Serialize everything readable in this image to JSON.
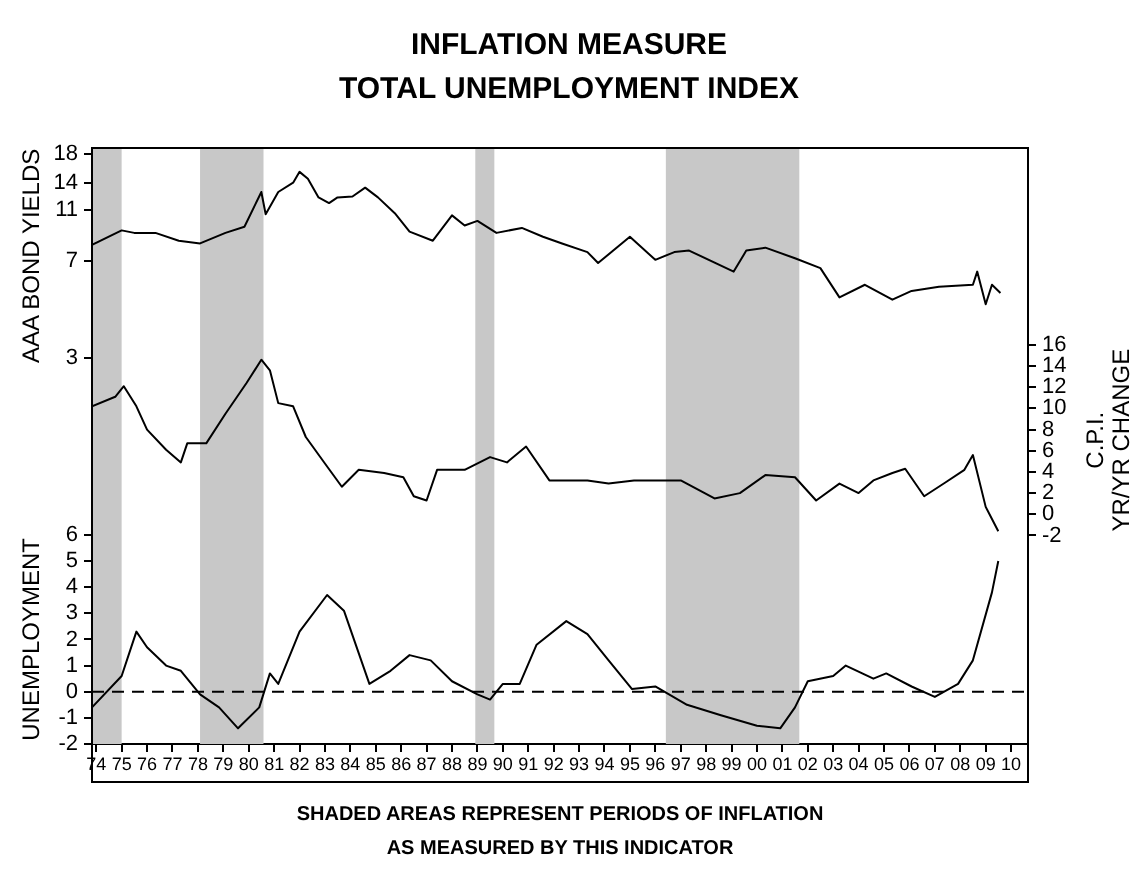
{
  "chart_data": {
    "type": "line",
    "title": "INFLATION MEASURE",
    "subtitle": "TOTAL UNEMPLOYMENT INDEX",
    "ylabel": "AAA BOND YIELDS",
    "y2label": "C.P.I.\nYR/YR CHANGE",
    "y3label": "UNEMPLOYMENT",
    "annotations": [
      "SHADED AREAS REPRESENT PERIODS OF INFLATION",
      "AS MEASURED BY THIS INDICATOR"
    ],
    "xlim": [
      "1973-11-01",
      "2010-09-01"
    ],
    "xticks": [
      {
        "value": "1974",
        "label": "74"
      },
      {
        "value": "1975",
        "label": "75"
      },
      {
        "value": "1976",
        "label": "76"
      },
      {
        "value": "1977",
        "label": "77"
      },
      {
        "value": "1978",
        "label": "78"
      },
      {
        "value": "1979",
        "label": "79"
      },
      {
        "value": "1980",
        "label": "80"
      },
      {
        "value": "1981",
        "label": "81"
      },
      {
        "value": "1982",
        "label": "82"
      },
      {
        "value": "1983",
        "label": "83"
      },
      {
        "value": "1984",
        "label": "84"
      },
      {
        "value": "1985",
        "label": "85"
      },
      {
        "value": "1986",
        "label": "86"
      },
      {
        "value": "1987",
        "label": "87"
      },
      {
        "value": "1988",
        "label": "88"
      },
      {
        "value": "1989",
        "label": "89"
      },
      {
        "value": "1990",
        "label": "90"
      },
      {
        "value": "1991",
        "label": "91"
      },
      {
        "value": "1992",
        "label": "92"
      },
      {
        "value": "1993",
        "label": "93"
      },
      {
        "value": "1994",
        "label": "94"
      },
      {
        "value": "1995",
        "label": "95"
      },
      {
        "value": "1996",
        "label": "96"
      },
      {
        "value": "1997",
        "label": "97"
      },
      {
        "value": "1998",
        "label": "98"
      },
      {
        "value": "1999",
        "label": "99"
      },
      {
        "value": "2000",
        "label": "00"
      },
      {
        "value": "2001",
        "label": "01"
      },
      {
        "value": "2002",
        "label": "02"
      },
      {
        "value": "2003",
        "label": "03"
      },
      {
        "value": "2004",
        "label": "04"
      },
      {
        "value": "2005",
        "label": "05"
      },
      {
        "value": "2006",
        "label": "06"
      },
      {
        "value": "2007",
        "label": "07"
      },
      {
        "value": "2008",
        "label": "08"
      },
      {
        "value": "2009",
        "label": "09"
      },
      {
        "value": "2010",
        "label": "10"
      }
    ],
    "ylim": [
      0.1,
      19
    ],
    "yticks": [
      3,
      7,
      11,
      14,
      18
    ],
    "log": "y",
    "y2lim": [
      -21.7,
      34.6
    ],
    "y2ticks": [
      -2,
      0,
      2,
      4,
      6,
      8,
      10,
      12,
      14,
      16
    ],
    "y3lim": [
      -2,
      20.8
    ],
    "y3ticks": [
      -2,
      -1,
      0,
      1,
      2,
      3,
      4,
      5,
      6
    ],
    "marker": "none",
    "line_style": "solid",
    "legend": false,
    "ref_lines": [
      {
        "axis": "y3",
        "value": 0,
        "line_style": "dashed",
        "color": "#000000"
      }
    ],
    "bands": [
      {
        "axis": "x",
        "from": "1973-11-01",
        "to": "1975-01-01",
        "color": "#c8c8c8"
      },
      {
        "axis": "x",
        "from": "1978-02-01",
        "to": "1980-08-01",
        "color": "#c8c8c8"
      },
      {
        "axis": "x",
        "from": "1988-12-01",
        "to": "1989-09-01",
        "color": "#c8c8c8"
      },
      {
        "axis": "x",
        "from": "1996-06-01",
        "to": "2001-09-01",
        "color": "#c8c8c8"
      }
    ],
    "series": [
      {
        "color": "#000000",
        "axis": "y",
        "x": [
          "1973-11",
          "1975-01",
          "1975-07",
          "1976-05",
          "1977-04",
          "1978-02",
          "1979-02",
          "1979-11",
          "1980-07",
          "1980-09",
          "1981-03",
          "1981-10",
          "1982-01",
          "1982-05",
          "1982-10",
          "1983-03",
          "1983-07",
          "1984-02",
          "1984-08",
          "1985-02",
          "1985-10",
          "1986-05",
          "1987-04",
          "1988-01",
          "1988-07",
          "1989-01",
          "1989-10",
          "1990-10",
          "1991-08",
          "1992-05",
          "1993-05",
          "1993-10",
          "1995-01",
          "1996-01",
          "1996-10",
          "1997-05",
          "1999-02",
          "1999-08",
          "2000-05",
          "2001-07",
          "2002-07",
          "2003-04",
          "2004-04",
          "2005-05",
          "2006-02",
          "2007-03",
          "2008-07",
          "2008-09",
          "2009-01",
          "2009-04",
          "2009-08"
        ],
        "values": [
          8.1,
          9.2,
          9.0,
          9.0,
          8.4,
          8.2,
          9.0,
          9.5,
          12.9,
          10.6,
          12.9,
          14.0,
          15.4,
          14.5,
          12.3,
          11.7,
          12.3,
          12.4,
          13.4,
          12.3,
          10.7,
          9.1,
          8.4,
          10.5,
          9.6,
          10.0,
          9.0,
          9.4,
          8.7,
          8.2,
          7.6,
          6.9,
          8.7,
          7.1,
          7.6,
          7.7,
          6.4,
          7.7,
          7.9,
          7.2,
          6.6,
          5.1,
          5.7,
          5.0,
          5.4,
          5.6,
          5.7,
          6.4,
          4.8,
          5.7,
          5.3
        ]
      },
      {
        "color": "#000000",
        "axis": "y2",
        "x": [
          "1973-11",
          "1974-10",
          "1975-02",
          "1975-08",
          "1976-01",
          "1976-10",
          "1977-05",
          "1977-08",
          "1978-05",
          "1979-02",
          "1979-12",
          "1980-07",
          "1980-11",
          "1981-03",
          "1981-10",
          "1982-04",
          "1983-01",
          "1983-09",
          "1984-05",
          "1985-05",
          "1986-02",
          "1986-07",
          "1987-01",
          "1987-06",
          "1988-07",
          "1989-07",
          "1990-03",
          "1990-12",
          "1991-11",
          "1993-05",
          "1994-03",
          "1995-03",
          "1997-01",
          "1998-05",
          "1999-05",
          "2000-05",
          "2001-07",
          "2002-05",
          "2003-04",
          "2004-01",
          "2004-08",
          "2005-05",
          "2005-11",
          "2006-08",
          "2007-06",
          "2008-03",
          "2008-07",
          "2009-01",
          "2009-07"
        ],
        "values": [
          10.2,
          11.1,
          12.1,
          10.2,
          8.0,
          6.1,
          4.9,
          6.7,
          6.7,
          9.5,
          12.4,
          14.6,
          13.6,
          10.5,
          10.2,
          7.3,
          4.8,
          2.6,
          4.2,
          3.9,
          3.5,
          1.7,
          1.3,
          4.2,
          4.2,
          5.4,
          4.9,
          6.4,
          3.2,
          3.2,
          2.9,
          3.2,
          3.2,
          1.5,
          2.0,
          3.7,
          3.5,
          1.3,
          2.9,
          2.0,
          3.2,
          3.9,
          4.3,
          1.7,
          3.0,
          4.2,
          5.6,
          0.7,
          -1.6
        ]
      },
      {
        "color": "#000000",
        "axis": "y3",
        "x": [
          "1973-11",
          "1975-01",
          "1975-08",
          "1976-01",
          "1976-10",
          "1977-05",
          "1978-02",
          "1978-11",
          "1979-08",
          "1980-06",
          "1980-11",
          "1981-03",
          "1982-01",
          "1983-02",
          "1983-10",
          "1984-10",
          "1985-08",
          "1986-05",
          "1987-03",
          "1988-01",
          "1989-01",
          "1989-07",
          "1990-01",
          "1990-09",
          "1991-05",
          "1992-07",
          "1993-05",
          "1994-03",
          "1995-02",
          "1996-01",
          "1997-04",
          "1998-08",
          "2000-01",
          "2000-12",
          "2001-07",
          "2002-01",
          "2003-01",
          "2003-07",
          "2004-08",
          "2005-02",
          "2006-02",
          "2007-01",
          "2007-12",
          "2008-07",
          "2009-04",
          "2009-07"
        ],
        "values": [
          -0.6,
          0.6,
          2.3,
          1.7,
          1.0,
          0.8,
          -0.1,
          -0.6,
          -1.4,
          -0.6,
          0.7,
          0.3,
          2.3,
          3.7,
          3.1,
          0.3,
          0.8,
          1.4,
          1.2,
          0.4,
          -0.1,
          -0.3,
          0.3,
          0.3,
          1.8,
          2.7,
          2.2,
          1.2,
          0.1,
          0.2,
          -0.5,
          -0.9,
          -1.3,
          -1.4,
          -0.6,
          0.4,
          0.6,
          1.0,
          0.5,
          0.7,
          0.2,
          -0.2,
          0.3,
          1.2,
          3.8,
          5.0
        ]
      }
    ]
  }
}
